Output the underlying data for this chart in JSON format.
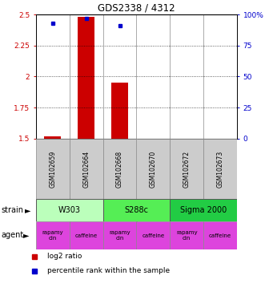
{
  "title": "GDS2338 / 4312",
  "samples": [
    "GSM102659",
    "GSM102664",
    "GSM102668",
    "GSM102670",
    "GSM102672",
    "GSM102673"
  ],
  "log2_ratio": [
    1.52,
    2.48,
    1.95,
    null,
    null,
    null
  ],
  "percentile_rank": [
    93,
    97,
    91,
    null,
    null,
    null
  ],
  "ylim_left": [
    1.5,
    2.5
  ],
  "ylim_right": [
    0,
    100
  ],
  "yticks_left": [
    1.5,
    1.75,
    2.0,
    2.25,
    2.5
  ],
  "yticks_right": [
    0,
    25,
    50,
    75,
    100
  ],
  "ytick_labels_left": [
    "1.5",
    "1.75",
    "2",
    "2.25",
    "2.5"
  ],
  "ytick_labels_right": [
    "0",
    "25",
    "50",
    "75",
    "100%"
  ],
  "dotted_yticks": [
    1.75,
    2.0,
    2.25
  ],
  "strains": [
    {
      "label": "W303",
      "cols": [
        0,
        1
      ],
      "color": "#bbffbb"
    },
    {
      "label": "S288c",
      "cols": [
        2,
        3
      ],
      "color": "#55ee55"
    },
    {
      "label": "Sigma 2000",
      "cols": [
        4,
        5
      ],
      "color": "#22cc44"
    }
  ],
  "bar_color": "#cc0000",
  "dot_color": "#0000cc",
  "sample_box_color": "#cccccc",
  "agent_color": "#dd44dd",
  "agent_labels": [
    "rapamycin",
    "caffeine",
    "rapamycin",
    "caffeine",
    "rapamycin",
    "caffeine"
  ],
  "legend_items": [
    {
      "label": "log2 ratio",
      "color": "#cc0000"
    },
    {
      "label": "percentile rank within the sample",
      "color": "#0000cc"
    }
  ]
}
